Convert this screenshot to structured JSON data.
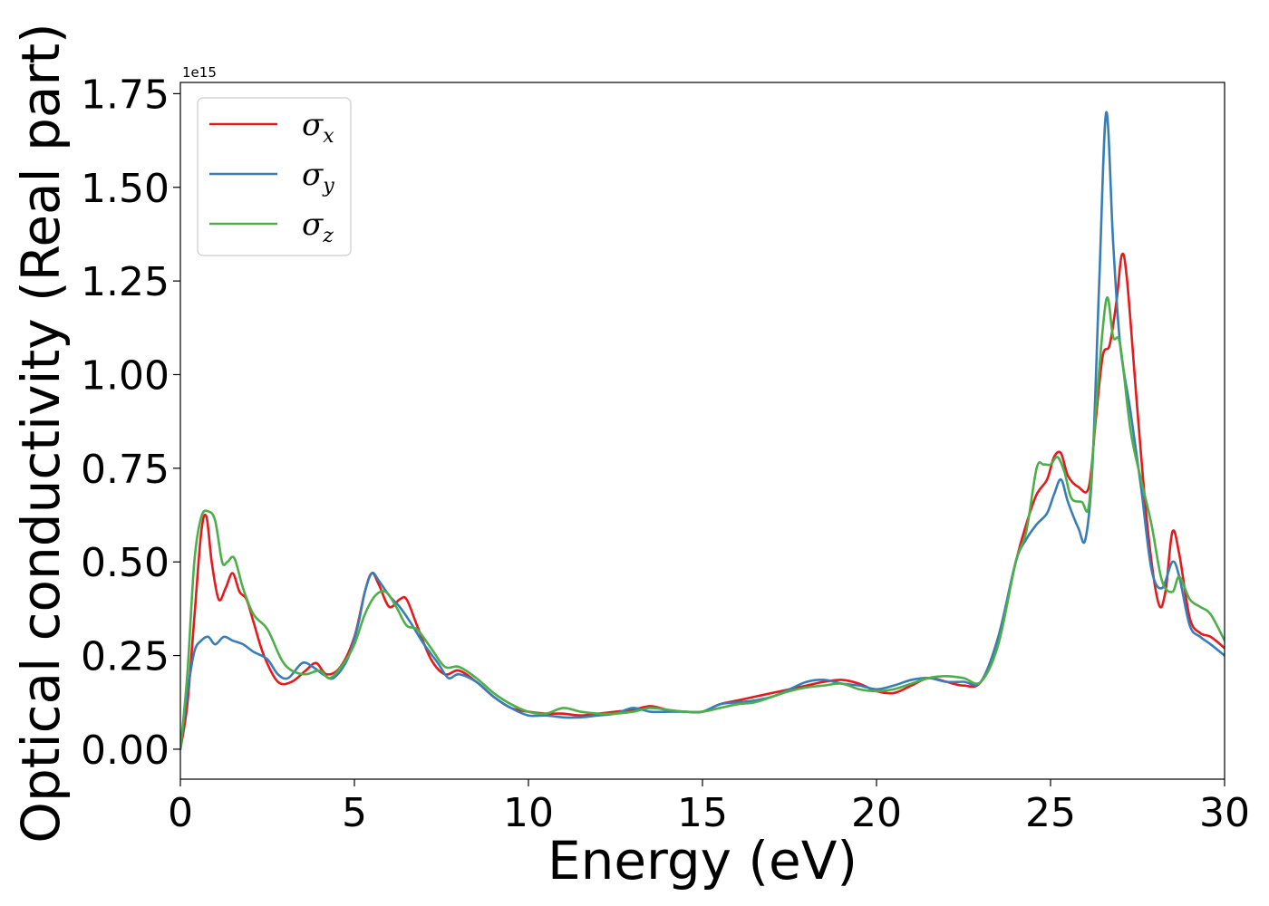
{
  "chart_data": {
    "type": "line",
    "xlabel": "Energy (eV)",
    "ylabel": "Optical conductivity (Real part)",
    "offset_text": "1e15",
    "xlim": [
      0,
      30
    ],
    "ylim": [
      -0.08,
      1.78
    ],
    "xticks": [
      0,
      5,
      10,
      15,
      20,
      25,
      30
    ],
    "xtick_labels": [
      "0",
      "5",
      "10",
      "15",
      "20",
      "25",
      "30"
    ],
    "yticks": [
      0.0,
      0.25,
      0.5,
      0.75,
      1.0,
      1.25,
      1.5,
      1.75
    ],
    "ytick_labels": [
      "0.00",
      "0.25",
      "0.50",
      "0.75",
      "1.00",
      "1.25",
      "1.50",
      "1.75"
    ],
    "grid": false,
    "legend_position": "top-left",
    "series": [
      {
        "name": "σx",
        "legend_symbol": "σ",
        "legend_sub": "x",
        "color": "#e41a1c",
        "x": [
          0,
          0.2,
          0.4,
          0.6,
          0.75,
          0.9,
          1.1,
          1.3,
          1.5,
          1.7,
          1.9,
          2.1,
          2.4,
          2.8,
          3.2,
          3.6,
          3.9,
          4.2,
          4.6,
          5.0,
          5.3,
          5.5,
          5.7,
          6.0,
          6.3,
          6.5,
          6.8,
          7.2,
          7.6,
          8.0,
          8.5,
          9.0,
          9.5,
          10.0,
          10.5,
          11.0,
          11.5,
          12.0,
          12.5,
          13.0,
          13.5,
          14.0,
          14.5,
          15.0,
          15.5,
          16.0,
          16.5,
          17.0,
          17.5,
          18.0,
          18.5,
          19.0,
          19.5,
          20.0,
          20.5,
          21.0,
          21.5,
          22.0,
          22.5,
          23.0,
          23.5,
          24.0,
          24.3,
          24.6,
          24.9,
          25.1,
          25.3,
          25.5,
          25.8,
          26.1,
          26.3,
          26.5,
          26.7,
          26.9,
          27.05,
          27.2,
          27.5,
          27.8,
          28.1,
          28.3,
          28.5,
          28.7,
          29.0,
          29.3,
          29.6,
          30.0
        ],
        "values": [
          0.0,
          0.12,
          0.35,
          0.58,
          0.62,
          0.5,
          0.4,
          0.43,
          0.47,
          0.42,
          0.4,
          0.34,
          0.25,
          0.18,
          0.18,
          0.21,
          0.23,
          0.2,
          0.22,
          0.3,
          0.42,
          0.47,
          0.44,
          0.38,
          0.4,
          0.4,
          0.33,
          0.24,
          0.2,
          0.21,
          0.18,
          0.14,
          0.11,
          0.1,
          0.095,
          0.095,
          0.09,
          0.095,
          0.1,
          0.105,
          0.115,
          0.105,
          0.1,
          0.1,
          0.12,
          0.13,
          0.14,
          0.15,
          0.16,
          0.17,
          0.18,
          0.185,
          0.175,
          0.155,
          0.15,
          0.17,
          0.19,
          0.18,
          0.17,
          0.18,
          0.3,
          0.5,
          0.6,
          0.68,
          0.72,
          0.78,
          0.79,
          0.73,
          0.7,
          0.7,
          0.88,
          1.05,
          1.08,
          1.2,
          1.32,
          1.25,
          0.9,
          0.58,
          0.39,
          0.42,
          0.58,
          0.52,
          0.35,
          0.31,
          0.3,
          0.27
        ]
      },
      {
        "name": "σy",
        "legend_symbol": "σ",
        "legend_sub": "y",
        "color": "#377eb8",
        "x": [
          0,
          0.2,
          0.4,
          0.6,
          0.8,
          1.0,
          1.25,
          1.5,
          1.8,
          2.1,
          2.5,
          2.8,
          3.1,
          3.5,
          3.8,
          4.1,
          4.4,
          4.8,
          5.1,
          5.3,
          5.5,
          5.7,
          6.0,
          6.3,
          6.6,
          7.0,
          7.4,
          7.7,
          8.0,
          8.5,
          9.0,
          9.5,
          10.0,
          10.5,
          11.0,
          11.5,
          12.0,
          12.5,
          13.0,
          13.5,
          14.0,
          14.5,
          15.0,
          15.5,
          16.0,
          16.5,
          17.0,
          17.5,
          18.0,
          18.5,
          19.0,
          19.5,
          20.0,
          20.5,
          21.0,
          21.5,
          22.0,
          22.5,
          23.0,
          23.5,
          24.0,
          24.3,
          24.6,
          24.9,
          25.1,
          25.3,
          25.5,
          25.8,
          26.0,
          26.2,
          26.4,
          26.6,
          26.8,
          27.0,
          27.3,
          27.6,
          27.9,
          28.2,
          28.5,
          28.7,
          29.0,
          29.3,
          29.6,
          30.0
        ],
        "values": [
          0.0,
          0.15,
          0.26,
          0.29,
          0.3,
          0.28,
          0.3,
          0.29,
          0.28,
          0.26,
          0.24,
          0.2,
          0.19,
          0.23,
          0.22,
          0.2,
          0.19,
          0.24,
          0.33,
          0.42,
          0.47,
          0.45,
          0.41,
          0.38,
          0.34,
          0.28,
          0.23,
          0.19,
          0.2,
          0.18,
          0.14,
          0.11,
          0.09,
          0.09,
          0.085,
          0.085,
          0.09,
          0.095,
          0.11,
          0.1,
          0.1,
          0.1,
          0.1,
          0.12,
          0.125,
          0.13,
          0.14,
          0.16,
          0.18,
          0.185,
          0.175,
          0.17,
          0.16,
          0.17,
          0.185,
          0.19,
          0.18,
          0.18,
          0.18,
          0.3,
          0.5,
          0.56,
          0.6,
          0.63,
          0.68,
          0.72,
          0.66,
          0.59,
          0.56,
          0.75,
          1.25,
          1.7,
          1.35,
          1.08,
          0.9,
          0.7,
          0.48,
          0.43,
          0.5,
          0.46,
          0.33,
          0.3,
          0.28,
          0.25
        ]
      },
      {
        "name": "σz",
        "legend_symbol": "σ",
        "legend_sub": "z",
        "color": "#4daf4a",
        "x": [
          0,
          0.2,
          0.4,
          0.6,
          0.8,
          1.0,
          1.2,
          1.35,
          1.55,
          1.8,
          2.1,
          2.5,
          2.9,
          3.2,
          3.6,
          4.0,
          4.3,
          4.7,
          5.0,
          5.3,
          5.6,
          5.9,
          6.2,
          6.5,
          6.8,
          7.2,
          7.6,
          8.0,
          8.5,
          9.0,
          9.5,
          10.0,
          10.5,
          11.0,
          11.5,
          12.0,
          12.5,
          13.0,
          13.5,
          14.0,
          14.5,
          15.0,
          15.5,
          16.0,
          16.5,
          17.0,
          17.5,
          18.0,
          18.5,
          19.0,
          19.5,
          20.0,
          20.5,
          21.0,
          21.5,
          22.0,
          22.5,
          23.0,
          23.5,
          24.0,
          24.3,
          24.6,
          24.8,
          25.0,
          25.2,
          25.4,
          25.6,
          25.9,
          26.1,
          26.3,
          26.6,
          26.8,
          27.0,
          27.3,
          27.6,
          27.9,
          28.2,
          28.5,
          28.7,
          29.0,
          29.3,
          29.6,
          30.0
        ],
        "values": [
          0.0,
          0.2,
          0.5,
          0.62,
          0.635,
          0.61,
          0.5,
          0.5,
          0.51,
          0.43,
          0.36,
          0.32,
          0.24,
          0.21,
          0.2,
          0.21,
          0.19,
          0.23,
          0.28,
          0.36,
          0.41,
          0.42,
          0.38,
          0.33,
          0.32,
          0.27,
          0.22,
          0.22,
          0.19,
          0.15,
          0.12,
          0.1,
          0.095,
          0.11,
          0.1,
          0.095,
          0.095,
          0.1,
          0.11,
          0.105,
          0.1,
          0.1,
          0.11,
          0.12,
          0.125,
          0.14,
          0.155,
          0.165,
          0.17,
          0.175,
          0.16,
          0.155,
          0.16,
          0.175,
          0.19,
          0.195,
          0.19,
          0.18,
          0.28,
          0.5,
          0.58,
          0.75,
          0.76,
          0.76,
          0.78,
          0.74,
          0.67,
          0.66,
          0.65,
          0.9,
          1.2,
          1.1,
          1.08,
          0.85,
          0.72,
          0.6,
          0.45,
          0.42,
          0.46,
          0.4,
          0.38,
          0.36,
          0.29
        ]
      }
    ]
  }
}
